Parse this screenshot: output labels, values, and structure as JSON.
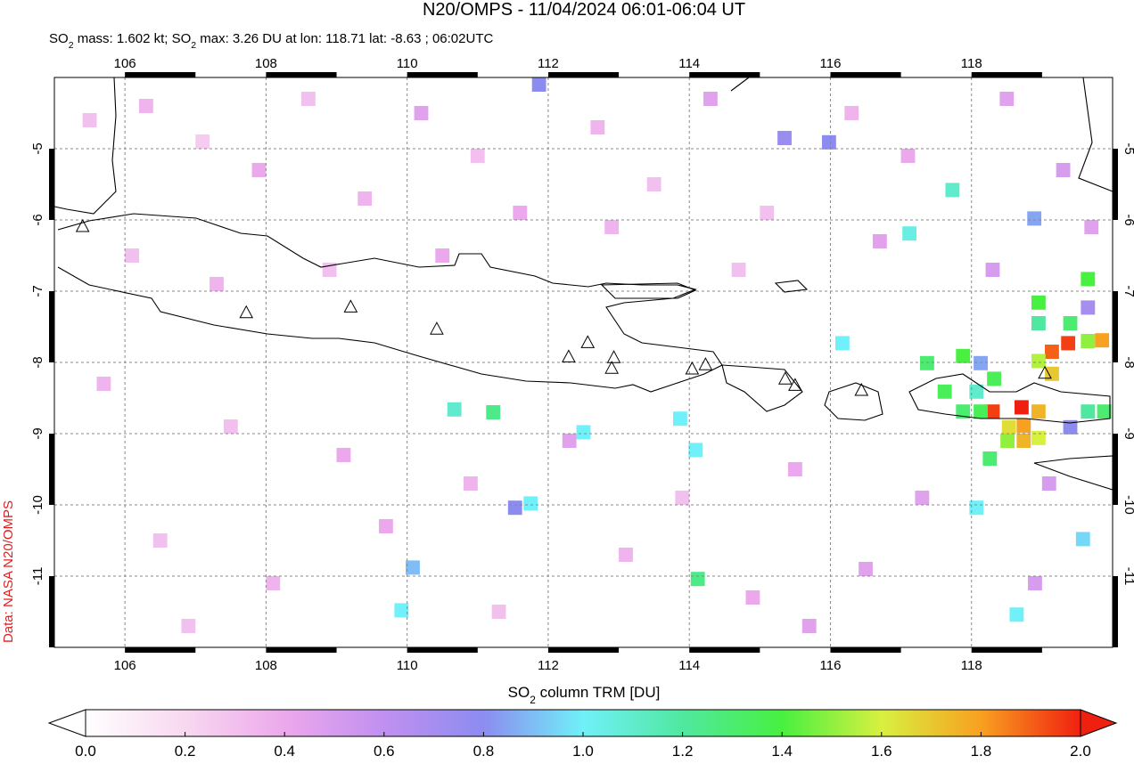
{
  "chart_data": {
    "type": "map",
    "title": "N20/OMPS - 11/04/2024 06:01-06:04 UT",
    "subtitle": [
      "SO",
      "2",
      " mass: 1.602 kt; SO",
      "2",
      " max: 3.26 DU at lon: 118.71 lat: -8.63 ; 06:02UTC"
    ],
    "source": "Data: NASA N20/OMPS",
    "colorbar_label": [
      "SO",
      "2",
      " column TRM [DU]"
    ],
    "xlim": [
      105,
      120
    ],
    "ylim": [
      -12,
      -4
    ],
    "xticks": [
      106,
      108,
      110,
      112,
      114,
      116,
      118
    ],
    "yticks": [
      -5,
      -6,
      -7,
      -8,
      -9,
      -10,
      -11
    ],
    "grid": true,
    "clim": [
      0,
      2
    ],
    "cticks": [
      {
        "value": 0,
        "label": "0.0"
      },
      {
        "value": 0.2,
        "label": "0.2"
      },
      {
        "value": 0.4,
        "label": "0.4"
      },
      {
        "value": 0.6,
        "label": "0.6"
      },
      {
        "value": 0.8,
        "label": "0.8"
      },
      {
        "value": 1,
        "label": "1.0"
      },
      {
        "value": 1.2,
        "label": "1.2"
      },
      {
        "value": 1.4,
        "label": "1.4"
      },
      {
        "value": 1.6,
        "label": "1.6"
      },
      {
        "value": 1.8,
        "label": "1.8"
      },
      {
        "value": 2,
        "label": "2.0"
      }
    ],
    "colors": [
      "#ffffff",
      "#f8d8f0",
      "#eca8ec",
      "#c090f0",
      "#8c8cf0",
      "#70f0f8",
      "#50e8a0",
      "#48f040",
      "#d8f040",
      "#f8a020",
      "#f02010"
    ],
    "volcanoes": [
      [
        105.4,
        -6.1
      ],
      [
        107.72,
        -7.31
      ],
      [
        109.2,
        -7.23
      ],
      [
        110.42,
        -7.54
      ],
      [
        112.29,
        -7.93
      ],
      [
        112.56,
        -7.73
      ],
      [
        112.93,
        -7.94
      ],
      [
        112.9,
        -8.09
      ],
      [
        114.04,
        -8.1
      ],
      [
        114.23,
        -8.04
      ],
      [
        115.36,
        -8.24
      ],
      [
        115.5,
        -8.33
      ],
      [
        116.44,
        -8.4
      ],
      [
        119.04,
        -8.16
      ]
    ],
    "pixels": [
      [
        105.5,
        -4.6,
        0.3
      ],
      [
        106.3,
        -4.4,
        0.35
      ],
      [
        107.1,
        -4.9,
        0.25
      ],
      [
        107.9,
        -5.3,
        0.4
      ],
      [
        108.6,
        -4.3,
        0.3
      ],
      [
        109.4,
        -5.7,
        0.35
      ],
      [
        110.2,
        -4.5,
        0.45
      ],
      [
        111.0,
        -5.1,
        0.3
      ],
      [
        111.6,
        -5.9,
        0.4
      ],
      [
        112.7,
        -4.7,
        0.35
      ],
      [
        113.5,
        -5.5,
        0.3
      ],
      [
        114.3,
        -4.3,
        0.45
      ],
      [
        115.1,
        -5.9,
        0.3
      ],
      [
        116.3,
        -4.5,
        0.35
      ],
      [
        117.1,
        -5.1,
        0.4
      ],
      [
        118.5,
        -4.3,
        0.45
      ],
      [
        119.3,
        -5.3,
        0.5
      ],
      [
        119.7,
        -6.1,
        0.45
      ],
      [
        106.1,
        -6.5,
        0.3
      ],
      [
        107.3,
        -6.9,
        0.35
      ],
      [
        108.9,
        -6.7,
        0.3
      ],
      [
        110.5,
        -6.5,
        0.4
      ],
      [
        112.9,
        -6.1,
        0.35
      ],
      [
        114.7,
        -6.7,
        0.3
      ],
      [
        116.7,
        -6.3,
        0.45
      ],
      [
        118.3,
        -6.7,
        0.5
      ],
      [
        105.7,
        -8.3,
        0.35
      ],
      [
        107.5,
        -8.9,
        0.3
      ],
      [
        109.1,
        -9.3,
        0.4
      ],
      [
        110.9,
        -9.7,
        0.35
      ],
      [
        112.3,
        -9.1,
        0.45
      ],
      [
        113.9,
        -9.9,
        0.3
      ],
      [
        115.5,
        -9.5,
        0.4
      ],
      [
        117.3,
        -9.9,
        0.45
      ],
      [
        119.1,
        -9.7,
        0.5
      ],
      [
        106.5,
        -10.5,
        0.3
      ],
      [
        108.1,
        -11.1,
        0.35
      ],
      [
        109.7,
        -10.3,
        0.4
      ],
      [
        111.3,
        -11.5,
        0.3
      ],
      [
        113.1,
        -10.7,
        0.35
      ],
      [
        114.9,
        -11.3,
        0.4
      ],
      [
        116.5,
        -10.9,
        0.45
      ],
      [
        118.9,
        -11.1,
        0.5
      ],
      [
        106.9,
        -11.7,
        0.3
      ],
      [
        115.7,
        -11.7,
        0.45
      ],
      [
        119.37,
        -7.73,
        1.95
      ],
      [
        119.14,
        -7.85,
        1.9
      ],
      [
        119.85,
        -7.69,
        1.8
      ],
      [
        119.65,
        -7.7,
        1.5
      ],
      [
        118.95,
        -7.16,
        1.4
      ],
      [
        119.65,
        -6.83,
        1.4
      ],
      [
        118.95,
        -7.45,
        1.2
      ],
      [
        119.4,
        -7.45,
        1.3
      ],
      [
        118.95,
        -7.98,
        1.55
      ],
      [
        119.14,
        -8.16,
        1.7
      ],
      [
        118.71,
        -8.63,
        3.26
      ],
      [
        118.3,
        -8.69,
        1.95
      ],
      [
        118.53,
        -8.91,
        1.65
      ],
      [
        118.95,
        -8.69,
        1.75
      ],
      [
        118.74,
        -8.89,
        1.8
      ],
      [
        118.13,
        -8.69,
        1.35
      ],
      [
        117.88,
        -8.69,
        1.3
      ],
      [
        117.62,
        -8.41,
        1.35
      ],
      [
        117.37,
        -8.01,
        1.3
      ],
      [
        117.88,
        -7.91,
        1.4
      ],
      [
        118.13,
        -8.01,
        0.85
      ],
      [
        118.32,
        -8.23,
        1.35
      ],
      [
        118.95,
        -9.06,
        1.6
      ],
      [
        118.51,
        -9.1,
        1.5
      ],
      [
        118.74,
        -9.1,
        1.75
      ],
      [
        118.07,
        -8.41,
        1.1
      ],
      [
        119.65,
        -8.69,
        1.2
      ],
      [
        119.88,
        -8.69,
        1.3
      ],
      [
        119.4,
        -8.91,
        0.8
      ],
      [
        118.26,
        -9.35,
        1.3
      ],
      [
        118.07,
        -10.04,
        1.0
      ],
      [
        118.64,
        -11.54,
        1.0
      ],
      [
        119.58,
        -10.48,
        0.95
      ],
      [
        118.89,
        -5.98,
        0.85
      ],
      [
        117.12,
        -6.19,
        1.05
      ],
      [
        117.73,
        -5.58,
        1.1
      ],
      [
        116.17,
        -7.73,
        1.0
      ],
      [
        114.12,
        -11.04,
        1.25
      ],
      [
        111.22,
        -8.7,
        1.25
      ],
      [
        110.67,
        -8.66,
        1.1
      ],
      [
        119.65,
        -7.23,
        0.7
      ],
      [
        111.87,
        -4.1,
        0.8
      ],
      [
        115.35,
        -4.85,
        0.75
      ],
      [
        115.98,
        -4.91,
        0.8
      ],
      [
        109.92,
        -11.48,
        1.0
      ],
      [
        110.08,
        -10.88,
        0.9
      ],
      [
        111.75,
        -9.98,
        1.0
      ],
      [
        111.53,
        -10.04,
        0.8
      ],
      [
        113.87,
        -8.79,
        1.0
      ],
      [
        114.09,
        -9.23,
        1.0
      ],
      [
        112.5,
        -8.98,
        1.0
      ]
    ]
  }
}
